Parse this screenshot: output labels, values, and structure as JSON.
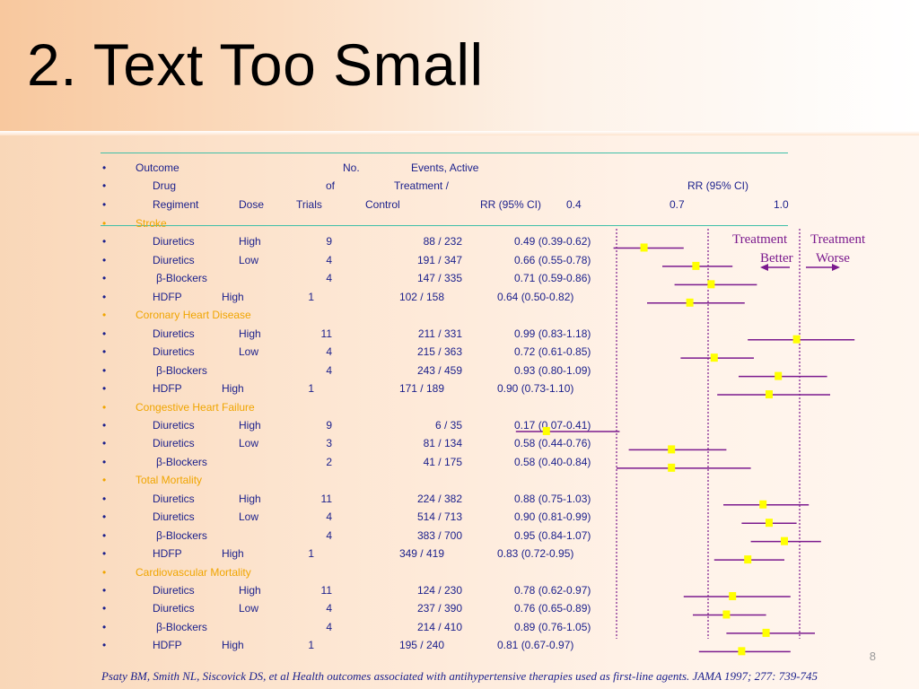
{
  "slide": {
    "title": "2. Text Too Small",
    "page_number": "8",
    "footer": "Psaty BM, Smith NL, Siscovick DS, et al  Health outcomes associated with antihypertensive therapies used as first-line agents.  JAMA 1997; 277: 739-745"
  },
  "header": {
    "bullet": "•",
    "row1": {
      "outcome": "Outcome",
      "no": "No.",
      "events": "Events, Active"
    },
    "row2": {
      "drug": "Drug",
      "of": "of",
      "treatment": "Treatment /",
      "rr": "RR (95% CI)"
    },
    "row3": {
      "regiment": "Regiment",
      "dose": "Dose",
      "trials": "Trials",
      "control": "Control",
      "rrci": "RR (95% CI)",
      "tick1": "0.4",
      "tick2": "0.7",
      "tick3": "1.0"
    }
  },
  "legend": {
    "left_line1": "Treatment",
    "left_line2": "Better",
    "right_line1": "Treatment",
    "right_line2": "Worse"
  },
  "chart_data": {
    "type": "forest",
    "x_ticks": [
      "0.4",
      "0.7",
      "1.0"
    ],
    "xlim": [
      0.1,
      1.2
    ],
    "reference_lines": [
      0.4,
      0.7,
      1.0
    ],
    "sections": [
      {
        "name": "Stroke",
        "rows": [
          {
            "drug": "Diuretics",
            "dose": "High",
            "trials": "9",
            "events": "88 / 232",
            "rr_text": "0.49 (0.39-0.62)",
            "rr": 0.49,
            "lo": 0.39,
            "hi": 0.62
          },
          {
            "drug": "Diuretics",
            "dose": "Low",
            "trials": "4",
            "events": "191 / 347",
            "rr_text": "0.66 (0.55-0.78)",
            "rr": 0.66,
            "lo": 0.55,
            "hi": 0.78
          },
          {
            "drug": "β-Blockers",
            "dose": "",
            "trials": "4",
            "events": "147 / 335",
            "rr_text": "0.71 (0.59-0.86)",
            "rr": 0.71,
            "lo": 0.59,
            "hi": 0.86
          },
          {
            "drug": "HDFP",
            "dose": "High",
            "trials": "1",
            "events": "102 / 158",
            "rr_text": "0.64 (0.50-0.82)",
            "rr": 0.64,
            "lo": 0.5,
            "hi": 0.82
          }
        ]
      },
      {
        "name": "Coronary Heart Disease",
        "rows": [
          {
            "drug": "Diuretics",
            "dose": "High",
            "trials": "11",
            "events": "211 / 331",
            "rr_text": "0.99 (0.83-1.18)",
            "rr": 0.99,
            "lo": 0.83,
            "hi": 1.18
          },
          {
            "drug": "Diuretics",
            "dose": "Low",
            "trials": "4",
            "events": "215 / 363",
            "rr_text": "0.72 (0.61-0.85)",
            "rr": 0.72,
            "lo": 0.61,
            "hi": 0.85
          },
          {
            "drug": "β-Blockers",
            "dose": "",
            "trials": "4",
            "events": "243 / 459",
            "rr_text": "0.93 (0.80-1.09)",
            "rr": 0.93,
            "lo": 0.8,
            "hi": 1.09
          },
          {
            "drug": "HDFP",
            "dose": "High",
            "trials": "1",
            "events": "171 / 189",
            "rr_text": "0.90 (0.73-1.10)",
            "rr": 0.9,
            "lo": 0.73,
            "hi": 1.1
          }
        ]
      },
      {
        "name": "Congestive Heart Failure",
        "rows": [
          {
            "drug": "Diuretics",
            "dose": "High",
            "trials": "9",
            "events": "6 / 35",
            "rr_text": "0.17 (0.07-0.41)",
            "rr": 0.17,
            "lo": 0.07,
            "hi": 0.41
          },
          {
            "drug": "Diuretics",
            "dose": "Low",
            "trials": "3",
            "events": "81 / 134",
            "rr_text": "0.58 (0.44-0.76)",
            "rr": 0.58,
            "lo": 0.44,
            "hi": 0.76
          },
          {
            "drug": "β-Blockers",
            "dose": "",
            "trials": "2",
            "events": "41 / 175",
            "rr_text": "0.58 (0.40-0.84)",
            "rr": 0.58,
            "lo": 0.4,
            "hi": 0.84
          }
        ]
      },
      {
        "name": "Total Mortality",
        "rows": [
          {
            "drug": "Diuretics",
            "dose": "High",
            "trials": "11",
            "events": "224 / 382",
            "rr_text": "0.88 (0.75-1.03)",
            "rr": 0.88,
            "lo": 0.75,
            "hi": 1.03
          },
          {
            "drug": "Diuretics",
            "dose": "Low",
            "trials": "4",
            "events": "514 / 713",
            "rr_text": "0.90 (0.81-0.99)",
            "rr": 0.9,
            "lo": 0.81,
            "hi": 0.99
          },
          {
            "drug": "β-Blockers",
            "dose": "",
            "trials": "4",
            "events": "383 / 700",
            "rr_text": "0.95 (0.84-1.07)",
            "rr": 0.95,
            "lo": 0.84,
            "hi": 1.07
          },
          {
            "drug": "HDFP",
            "dose": "High",
            "trials": "1",
            "events": "349 / 419",
            "rr_text": "0.83 (0.72-0.95)",
            "rr": 0.83,
            "lo": 0.72,
            "hi": 0.95
          }
        ]
      },
      {
        "name": "Cardiovascular Mortality",
        "rows": [
          {
            "drug": "Diuretics",
            "dose": "High",
            "trials": "11",
            "events": "124 / 230",
            "rr_text": "0.78 (0.62-0.97)",
            "rr": 0.78,
            "lo": 0.62,
            "hi": 0.97
          },
          {
            "drug": "Diuretics",
            "dose": "Low",
            "trials": "4",
            "events": "237 / 390",
            "rr_text": "0.76 (0.65-0.89)",
            "rr": 0.76,
            "lo": 0.65,
            "hi": 0.89
          },
          {
            "drug": "β-Blockers",
            "dose": "",
            "trials": "4",
            "events": "214 / 410",
            "rr_text": "0.89 (0.76-1.05)",
            "rr": 0.89,
            "lo": 0.76,
            "hi": 1.05
          },
          {
            "drug": "HDFP",
            "dose": "High",
            "trials": "1",
            "events": "195 / 240",
            "rr_text": "0.81 (0.67-0.97)",
            "rr": 0.81,
            "lo": 0.67,
            "hi": 0.97
          }
        ]
      }
    ]
  },
  "colors": {
    "title": "#000000",
    "text": "#1a1f8c",
    "section": "#f0a500",
    "ci_line": "#7b1a8e",
    "point": "#ffff00",
    "rule": "#3fbfa8"
  }
}
